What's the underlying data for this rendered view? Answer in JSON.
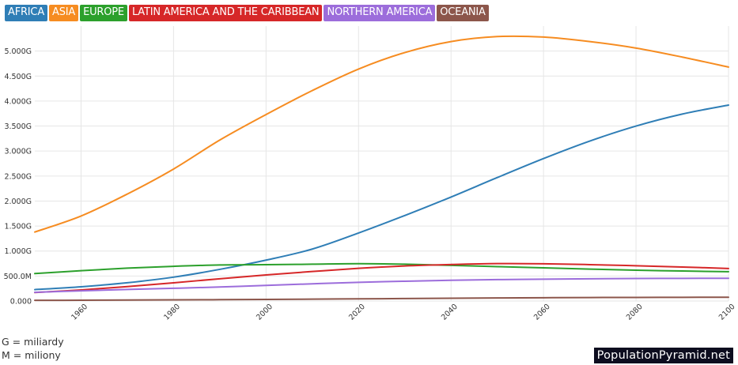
{
  "chart_data": {
    "type": "line",
    "xlim": [
      1950,
      2100
    ],
    "ylim": [
      0,
      5500
    ],
    "y_unit": "M",
    "grid": true,
    "legend_placement": "top-left",
    "x_ticks": [
      "1960",
      "1980",
      "2000",
      "2020",
      "2040",
      "2060",
      "2080",
      "2100"
    ],
    "y_ticks": [
      {
        "value": 0,
        "label": "0.000"
      },
      {
        "value": 500,
        "label": "500.0M"
      },
      {
        "value": 1000,
        "label": "1.000G"
      },
      {
        "value": 1500,
        "label": "1.500G"
      },
      {
        "value": 2000,
        "label": "2.000G"
      },
      {
        "value": 2500,
        "label": "2.500G"
      },
      {
        "value": 3000,
        "label": "3.000G"
      },
      {
        "value": 3500,
        "label": "3.500G"
      },
      {
        "value": 4000,
        "label": "4.000G"
      },
      {
        "value": 4500,
        "label": "4.500G"
      },
      {
        "value": 5000,
        "label": "5.000G"
      }
    ],
    "x": [
      1950,
      1960,
      1970,
      1980,
      1990,
      2000,
      2010,
      2020,
      2030,
      2040,
      2050,
      2060,
      2070,
      2080,
      2090,
      2100
    ],
    "series": [
      {
        "name": "AFRICA",
        "color": "#2f7eb6",
        "values": [
          228,
          285,
          365,
          477,
          633,
          818,
          1039,
          1360,
          1710,
          2080,
          2470,
          2850,
          3200,
          3500,
          3740,
          3920
        ]
      },
      {
        "name": "ASIA",
        "color": "#f68c21",
        "values": [
          1380,
          1700,
          2140,
          2640,
          3220,
          3730,
          4210,
          4640,
          4970,
          5190,
          5290,
          5280,
          5190,
          5060,
          4880,
          4680
        ]
      },
      {
        "name": "EUROPE",
        "color": "#2ca02c",
        "values": [
          549,
          606,
          657,
          694,
          721,
          726,
          736,
          746,
          736,
          713,
          688,
          663,
          638,
          616,
          600,
          586
        ]
      },
      {
        "name": "LATIN AMERICA AND THE CARIBBEAN",
        "color": "#d62728",
        "values": [
          169,
          221,
          288,
          364,
          445,
          522,
          590,
          654,
          702,
          730,
          748,
          745,
          728,
          705,
          680,
          650
        ]
      },
      {
        "name": "NORTHERN AMERICA",
        "color": "#9c6ddb",
        "values": [
          173,
          204,
          231,
          254,
          280,
          313,
          344,
          373,
          396,
          414,
          428,
          437,
          444,
          450,
          453,
          455
        ]
      },
      {
        "name": "OCEANIA",
        "color": "#8c564b",
        "values": [
          13,
          16,
          20,
          23,
          27,
          31,
          37,
          43,
          49,
          55,
          61,
          66,
          70,
          72,
          74,
          75
        ]
      }
    ]
  },
  "notes": {
    "g": "G = miliardy",
    "m": "M = miliony"
  },
  "watermark": "PopulationPyramid.net"
}
